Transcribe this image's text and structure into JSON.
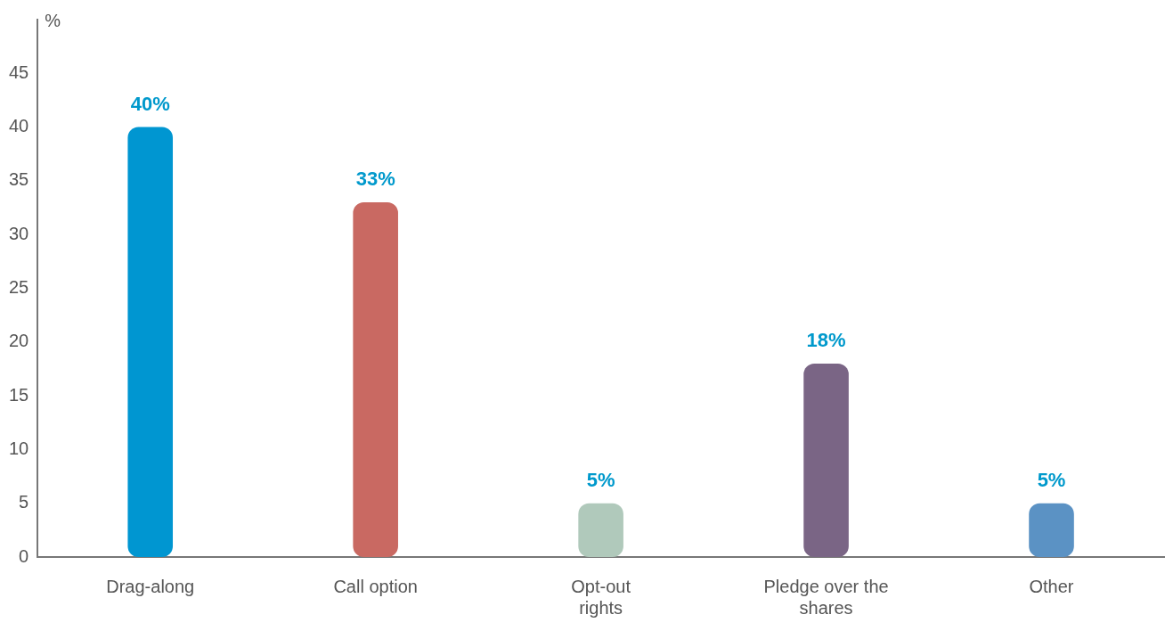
{
  "chart_data": {
    "type": "bar",
    "ylabel": "%",
    "categories": [
      "Drag-along",
      "Call option",
      "Opt-out rights",
      "Pledge over the shares",
      "Other"
    ],
    "values": [
      40,
      33,
      5,
      18,
      5
    ],
    "colors": [
      "#0096d1",
      "#c96962",
      "#b0c9bb",
      "#7a6585",
      "#5b92c4"
    ],
    "ylim": [
      0,
      50
    ],
    "yticks": [
      0,
      5,
      10,
      15,
      20,
      25,
      30,
      35,
      40,
      45
    ],
    "value_labels": [
      "40%",
      "33%",
      "5%",
      "18%",
      "5%"
    ],
    "grid": false,
    "legend": false
  }
}
